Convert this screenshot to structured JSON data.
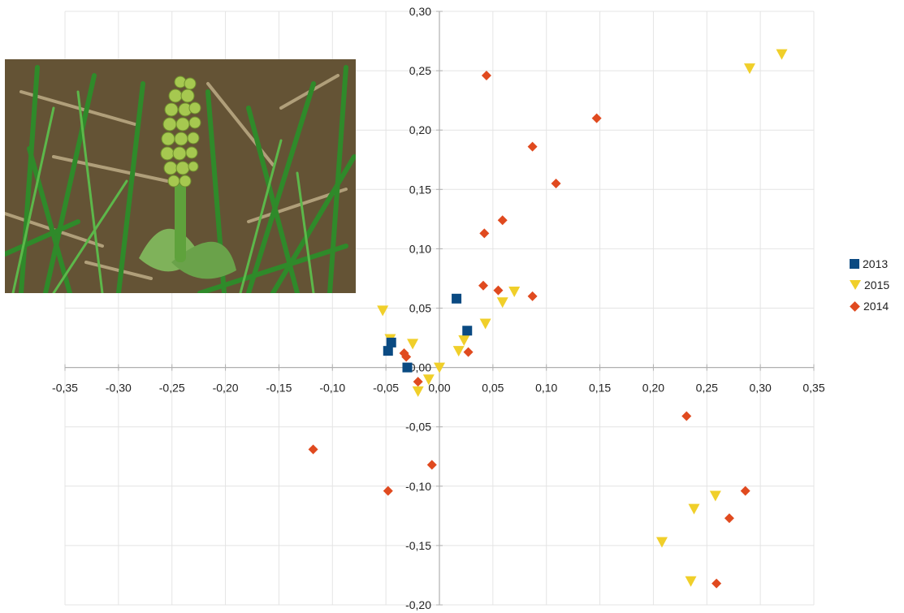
{
  "photo": {
    "alt": "photo of a green plant with a clustered bead-like spike among grass"
  },
  "colors": {
    "s2013": "#0a4a82",
    "s2015": "#f0cf2a",
    "s2014": "#e04a1f",
    "gridline": "#e4e4e4",
    "axis": "#b0b0b0"
  },
  "chart_data": {
    "type": "scatter",
    "title": "",
    "xlabel": "",
    "ylabel": "",
    "xlim": [
      -0.35,
      0.35
    ],
    "ylim": [
      -0.2,
      0.3
    ],
    "grid": {
      "x": true,
      "y": true
    },
    "legend_position": "right",
    "x_ticks": [
      "-0,35",
      "-0,30",
      "-0,25",
      "-0,20",
      "-0,15",
      "-0,10",
      "-0,05",
      "0,00",
      "0,05",
      "0,10",
      "0,15",
      "0,20",
      "0,25",
      "0,30",
      "0,35"
    ],
    "y_ticks": [
      "0,30",
      "0,25",
      "0,20",
      "0,15",
      "0,10",
      "0,05",
      "0,00",
      "-0,05",
      "-0,10",
      "-0,15",
      "-0,20"
    ],
    "series": [
      {
        "name": "2013",
        "marker": "square",
        "points": [
          [
            0.016,
            0.058
          ],
          [
            0.026,
            0.031
          ],
          [
            -0.045,
            0.021
          ],
          [
            -0.048,
            0.014
          ],
          [
            -0.03,
            0.0
          ]
        ]
      },
      {
        "name": "2015",
        "marker": "triangle-down",
        "points": [
          [
            0.32,
            0.264
          ],
          [
            0.29,
            0.252
          ],
          [
            -0.053,
            0.048
          ],
          [
            0.07,
            0.064
          ],
          [
            0.059,
            0.055
          ],
          [
            0.043,
            0.037
          ],
          [
            -0.046,
            0.024
          ],
          [
            -0.025,
            0.02
          ],
          [
            0.023,
            0.023
          ],
          [
            0.018,
            0.014
          ],
          [
            0.0,
            0.0
          ],
          [
            -0.01,
            -0.01
          ],
          [
            -0.02,
            -0.02
          ],
          [
            0.238,
            -0.119
          ],
          [
            0.258,
            -0.108
          ],
          [
            0.208,
            -0.147
          ],
          [
            0.235,
            -0.18
          ]
        ]
      },
      {
        "name": "2014",
        "marker": "diamond",
        "points": [
          [
            0.044,
            0.246
          ],
          [
            0.147,
            0.21
          ],
          [
            0.087,
            0.186
          ],
          [
            0.109,
            0.155
          ],
          [
            0.059,
            0.124
          ],
          [
            0.042,
            0.113
          ],
          [
            0.041,
            0.069
          ],
          [
            0.055,
            0.065
          ],
          [
            0.087,
            0.06
          ],
          [
            0.027,
            0.013
          ],
          [
            -0.033,
            0.012
          ],
          [
            -0.031,
            0.009
          ],
          [
            -0.02,
            -0.012
          ],
          [
            -0.118,
            -0.069
          ],
          [
            -0.007,
            -0.082
          ],
          [
            -0.048,
            -0.104
          ],
          [
            0.231,
            -0.041
          ],
          [
            0.286,
            -0.104
          ],
          [
            0.271,
            -0.127
          ],
          [
            0.259,
            -0.182
          ]
        ]
      }
    ]
  }
}
